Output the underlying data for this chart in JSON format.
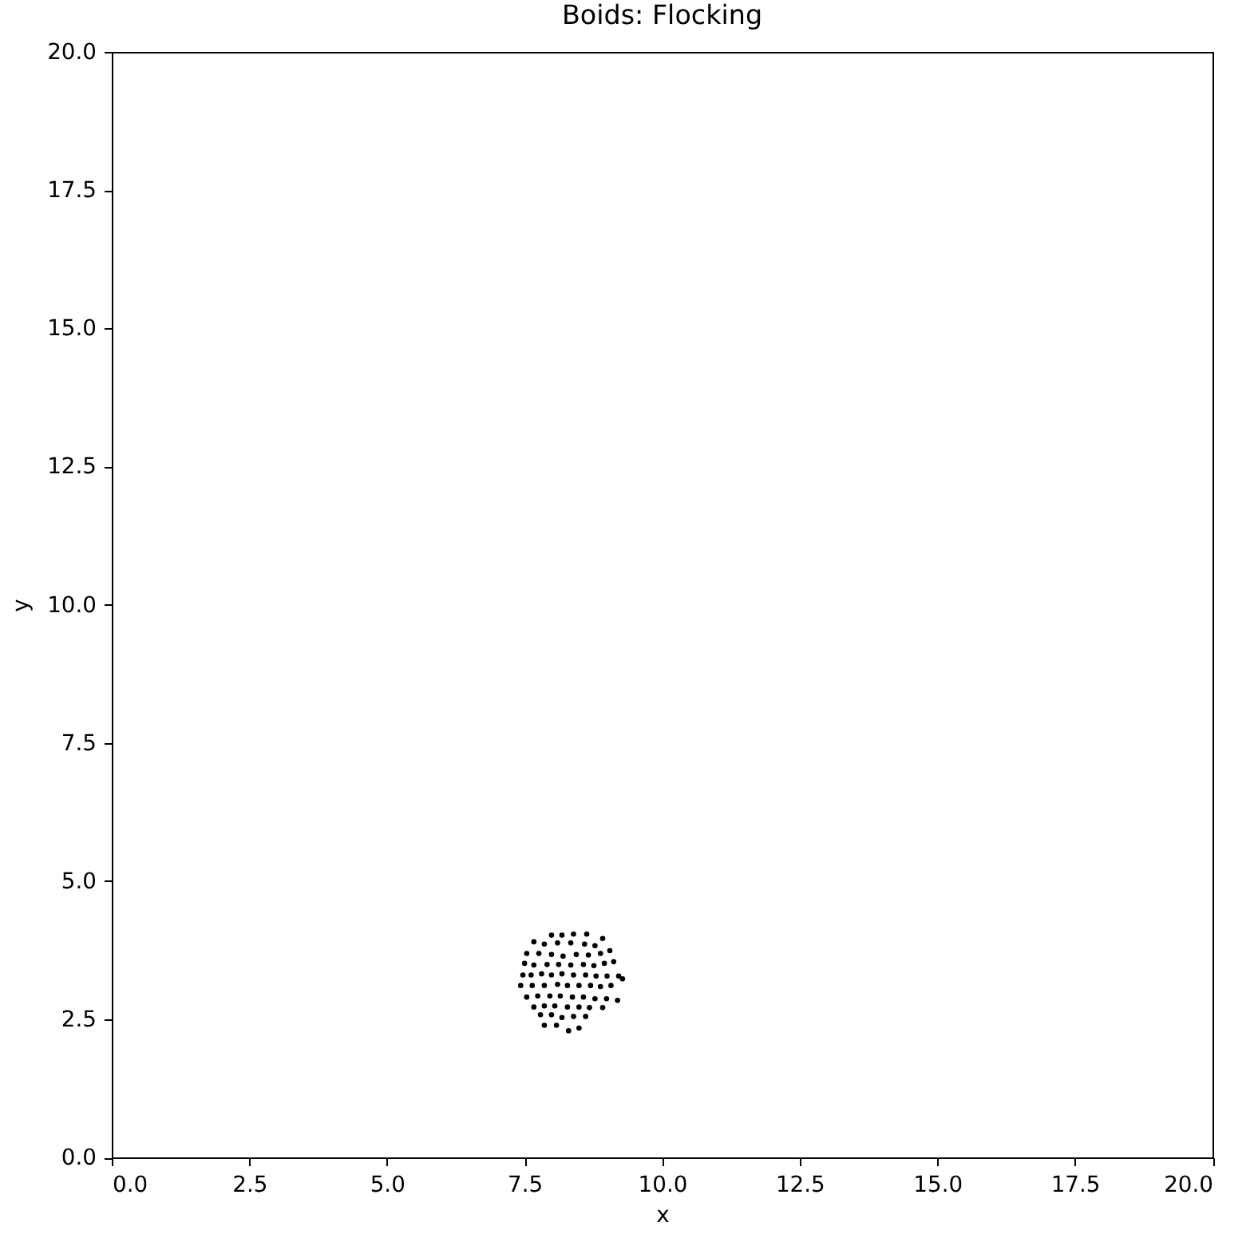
{
  "chart_data": {
    "type": "scatter",
    "title": "Boids: Flocking",
    "xlabel": "x",
    "ylabel": "y",
    "x": [
      7.99,
      8.18,
      8.39,
      8.63,
      7.67,
      7.86,
      8.1,
      8.34,
      8.59,
      8.78,
      8.92,
      7.54,
      7.76,
      7.99,
      8.2,
      8.44,
      8.66,
      8.88,
      9.05,
      7.5,
      7.67,
      7.91,
      8.12,
      8.34,
      8.57,
      8.76,
      8.95,
      9.12,
      7.47,
      7.62,
      7.81,
      7.99,
      8.18,
      8.39,
      8.61,
      8.8,
      9.0,
      9.21,
      7.43,
      7.64,
      7.86,
      8.1,
      8.28,
      8.49,
      8.7,
      8.88,
      9.07,
      9.28,
      7.54,
      7.74,
      7.96,
      8.15,
      8.37,
      8.57,
      8.78,
      8.99,
      9.19,
      7.67,
      7.86,
      8.05,
      8.28,
      8.49,
      8.68,
      8.92,
      7.79,
      7.99,
      8.18,
      8.39,
      8.61,
      7.86,
      8.08,
      8.3,
      8.49
    ],
    "values": [
      4.02,
      4.02,
      4.04,
      4.04,
      3.9,
      3.86,
      3.88,
      3.88,
      3.86,
      3.83,
      3.96,
      3.69,
      3.69,
      3.67,
      3.64,
      3.67,
      3.66,
      3.69,
      3.74,
      3.51,
      3.48,
      3.49,
      3.49,
      3.48,
      3.49,
      3.47,
      3.51,
      3.54,
      3.3,
      3.3,
      3.32,
      3.3,
      3.32,
      3.3,
      3.3,
      3.28,
      3.28,
      3.28,
      3.11,
      3.11,
      3.11,
      3.13,
      3.11,
      3.11,
      3.11,
      3.09,
      3.11,
      3.23,
      2.9,
      2.92,
      2.92,
      2.92,
      2.9,
      2.9,
      2.87,
      2.87,
      2.84,
      2.72,
      2.74,
      2.74,
      2.72,
      2.72,
      2.71,
      2.71,
      2.58,
      2.58,
      2.53,
      2.55,
      2.55,
      2.39,
      2.39,
      2.29,
      2.34
    ],
    "color": "#000000",
    "marker": "circle",
    "grid": false,
    "xlim": [
      0,
      20
    ],
    "ylim": [
      0,
      20
    ],
    "xticks": [
      {
        "value": 0,
        "label": "0.0"
      },
      2.5,
      {
        "value": 5,
        "label": "5.0"
      },
      7.5,
      {
        "value": 10,
        "label": "10.0"
      },
      12.5,
      {
        "value": 15,
        "label": "15.0"
      },
      17.5,
      {
        "value": 20,
        "label": "20.0"
      }
    ],
    "yticks": [
      {
        "value": 0,
        "label": "0.0"
      },
      2.5,
      {
        "value": 5,
        "label": "5.0"
      },
      7.5,
      {
        "value": 10,
        "label": "10.0"
      },
      12.5,
      {
        "value": 15,
        "label": "15.0"
      },
      17.5,
      {
        "value": 20,
        "label": "20.0"
      }
    ]
  }
}
